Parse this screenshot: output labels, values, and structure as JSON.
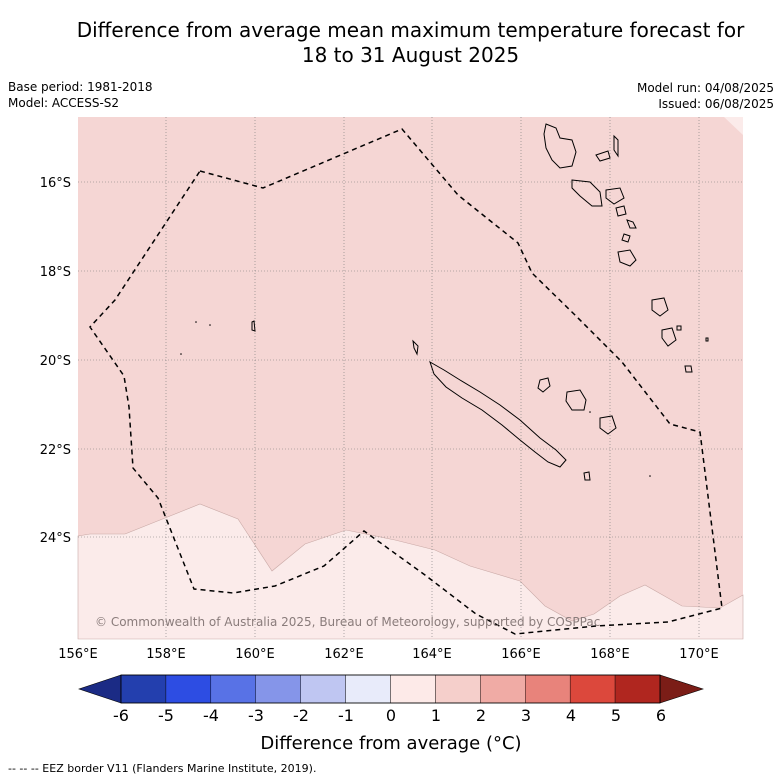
{
  "title_line1": "Difference from average mean maximum temperature forecast for",
  "title_line2": "18 to 31 August 2025",
  "base_period": "Base period: 1981-2018",
  "model": "Model: ACCESS-S2",
  "model_run": "Model run: 04/08/2025",
  "issued": "Issued: 06/08/2025",
  "copyright": "© Commonwealth of Australia 2025, Bureau of Meteorology, supported by COSPPac",
  "footer": "--  --  -- EEZ border V11 (Flanders Marine Institute, 2019).",
  "map": {
    "lat_labels": [
      "16°S",
      "18°S",
      "20°S",
      "22°S",
      "24°S"
    ],
    "lon_labels": [
      "156°E",
      "158°E",
      "160°E",
      "162°E",
      "164°E",
      "166°E",
      "168°E",
      "170°E"
    ],
    "fill_colors": {
      "main": "#f5d6d4",
      "south": "#fbebea"
    }
  },
  "colorbar": {
    "label": "Difference from average (°C)",
    "ticks": [
      "-6",
      "-5",
      "-4",
      "-3",
      "-2",
      "-1",
      "0",
      "1",
      "2",
      "3",
      "4",
      "5",
      "6"
    ],
    "colors": [
      "#233fae",
      "#2d4de3",
      "#5872e6",
      "#8595e9",
      "#bfc6f2",
      "#e8ebfa",
      "#fdeae8",
      "#f5cfcb",
      "#f0aba5",
      "#e8837b",
      "#dc483c",
      "#b0261f"
    ],
    "under_color": "#1b2b85",
    "over_color": "#7b1d17"
  }
}
